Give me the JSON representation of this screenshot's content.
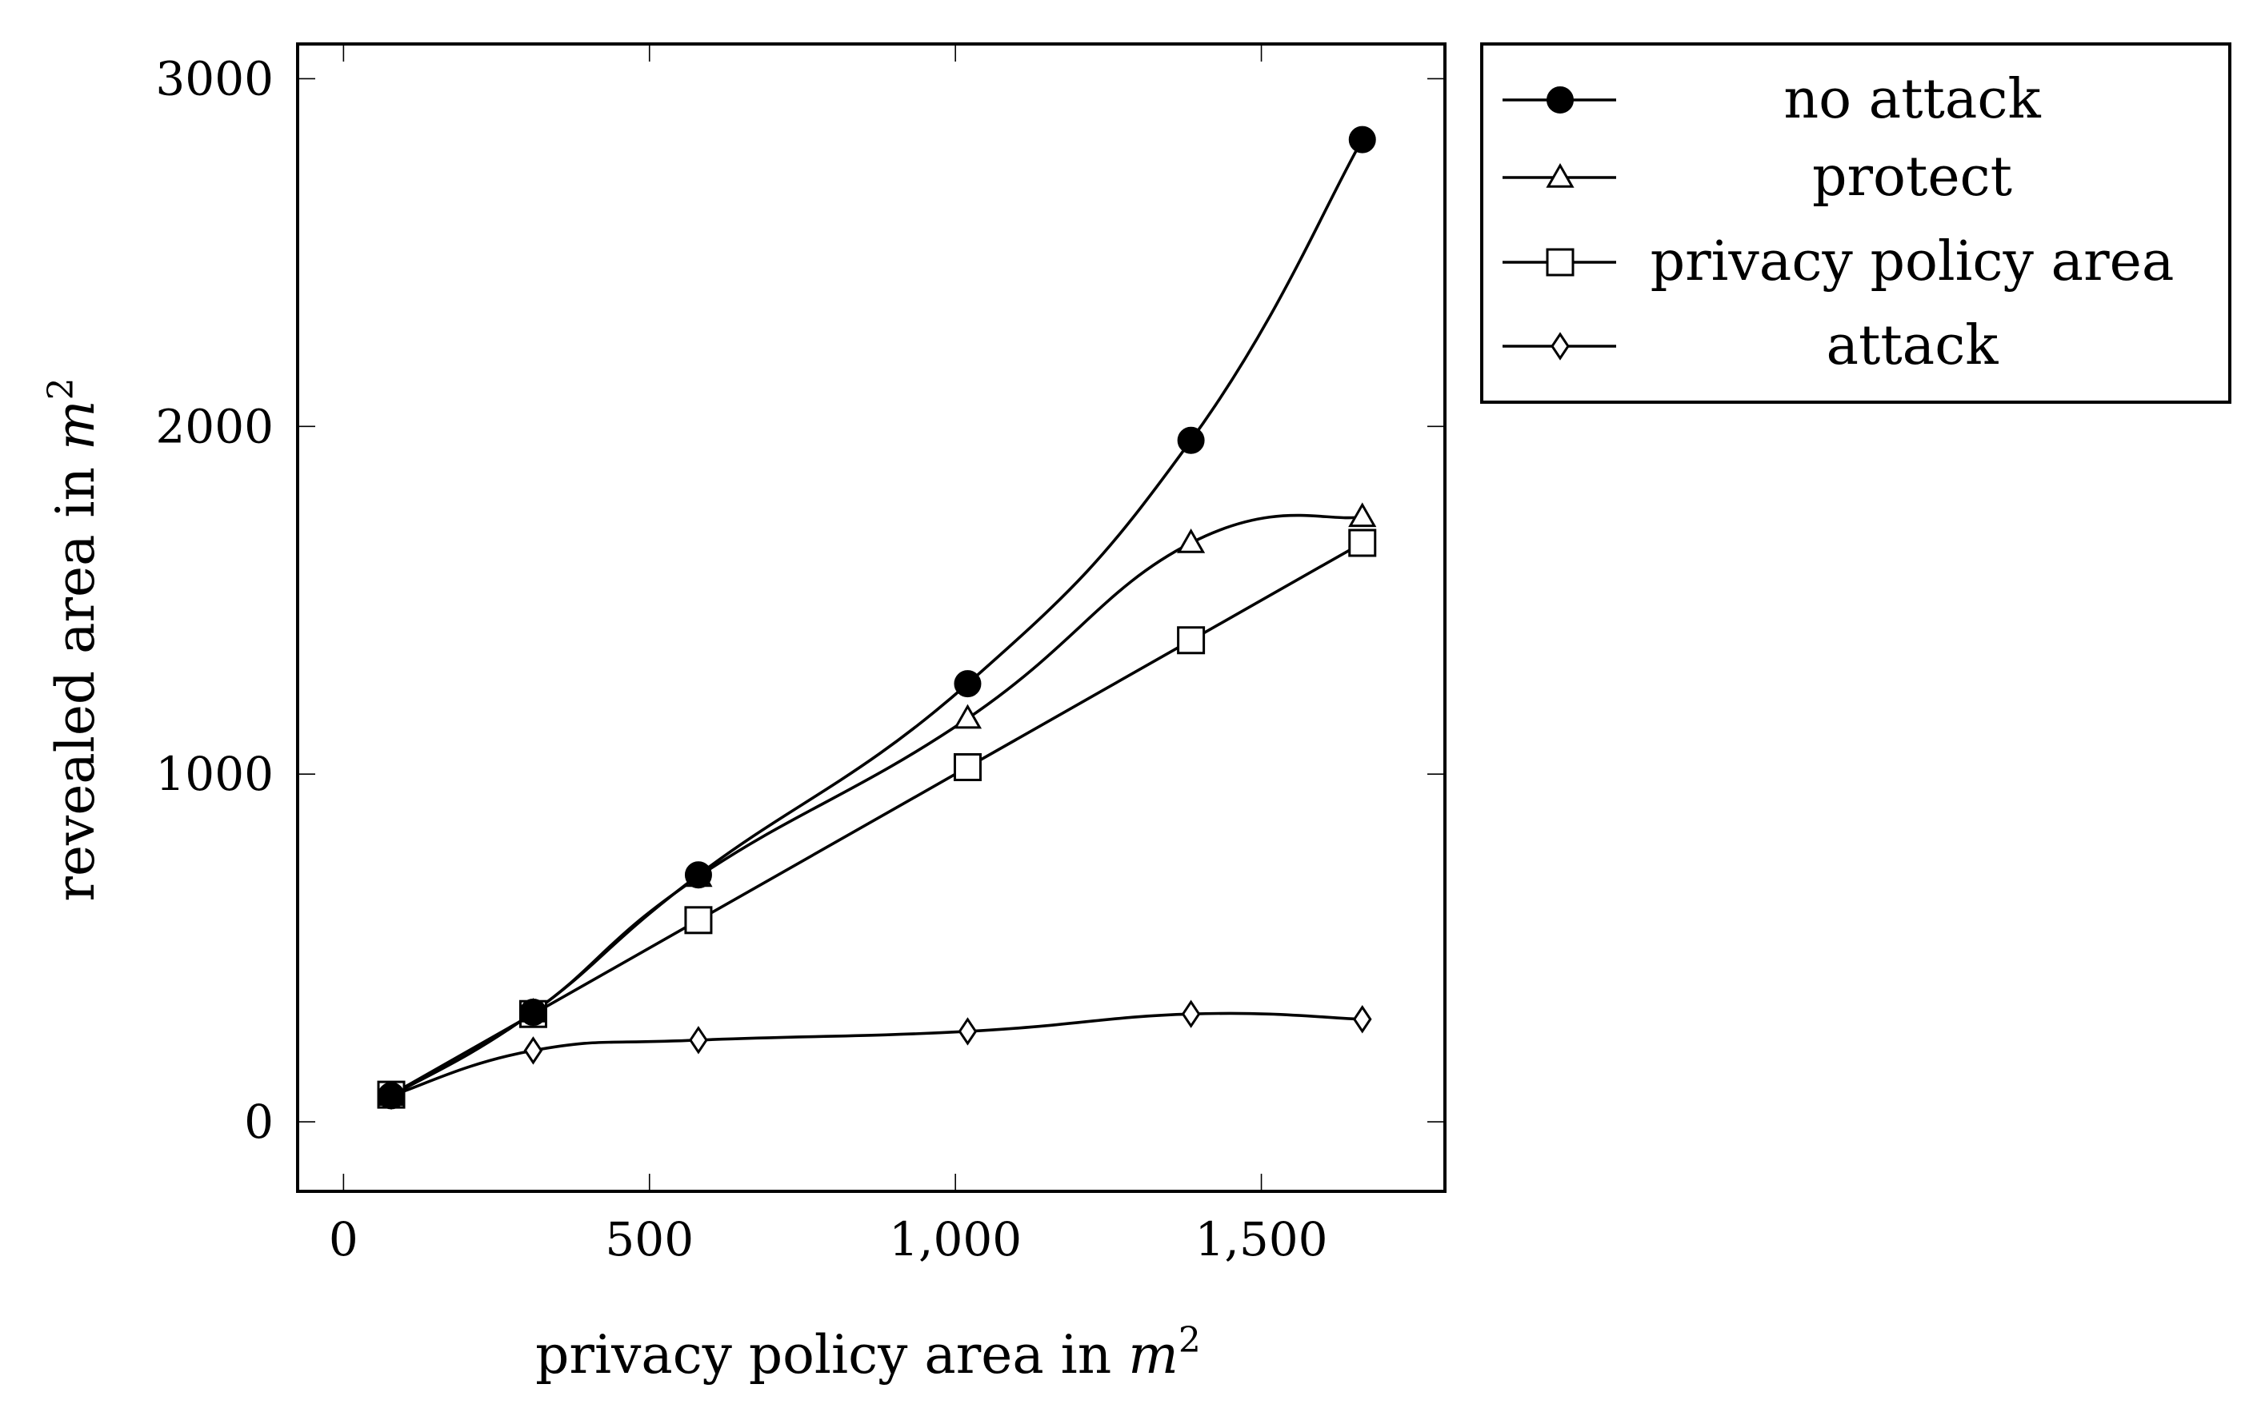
{
  "chart_data": {
    "type": "line",
    "xlabel_main": "privacy policy area in ",
    "xlabel_var": "m",
    "xlabel_sup": "2",
    "ylabel_main": "revealed area in ",
    "ylabel_var": "m",
    "ylabel_sup": "2",
    "xlim": [
      -75,
      1800
    ],
    "ylim": [
      -200,
      3100
    ],
    "xticks": [
      0,
      500,
      1000,
      1500
    ],
    "xtick_labels": [
      "0",
      "500",
      "1,000",
      "1,500"
    ],
    "yticks": [
      0,
      1000,
      2000,
      3000
    ],
    "ytick_labels": [
      "0",
      "1000",
      "2000",
      "3000"
    ],
    "grid": false,
    "legend_position": "outside-right-top",
    "x": [
      78,
      310,
      580,
      1020,
      1385,
      1665
    ],
    "series": [
      {
        "name": "no attack",
        "marker": "filled-circle",
        "values": [
          75,
          315,
          710,
          1260,
          1960,
          2825
        ]
      },
      {
        "name": "protect",
        "marker": "triangle",
        "values": [
          75,
          315,
          705,
          1160,
          1665,
          1740
        ]
      },
      {
        "name": "privacy policy area",
        "marker": "square",
        "values": [
          78,
          310,
          580,
          1020,
          1385,
          1665
        ]
      },
      {
        "name": "attack",
        "marker": "diamond",
        "values": [
          75,
          205,
          235,
          260,
          310,
          295
        ]
      }
    ]
  }
}
